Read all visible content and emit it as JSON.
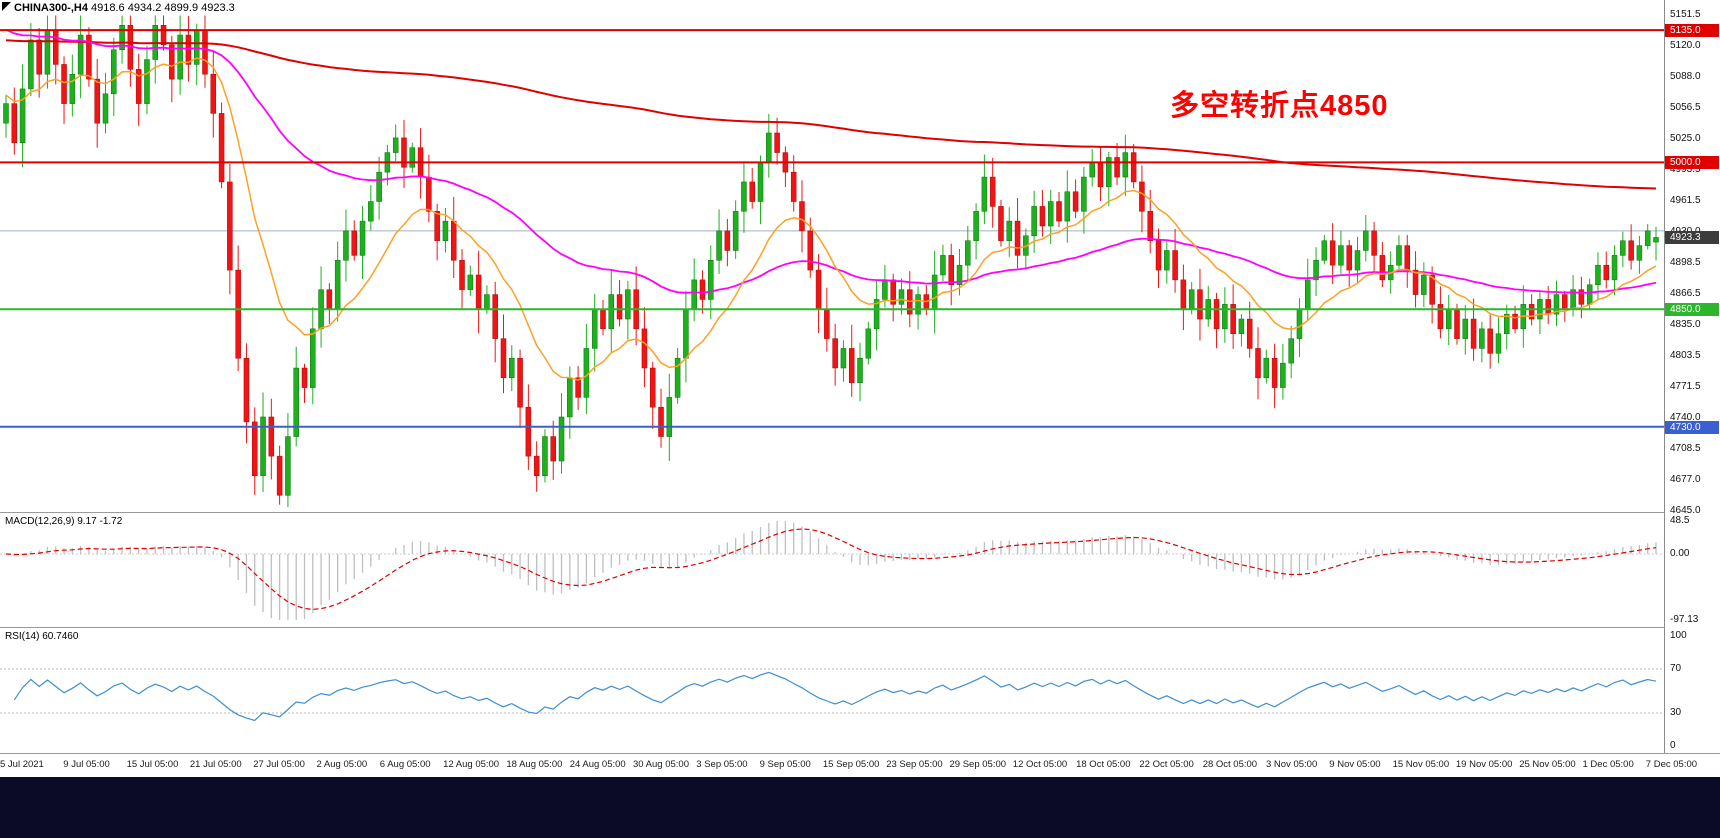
{
  "header": {
    "symbol": "CHINA300-,H4",
    "ohlc": "4918.6 4934.2 4899.9 4923.3"
  },
  "annotation": {
    "text": "多空转折点4850",
    "color": "#ff0000"
  },
  "indicators": {
    "macd_line": "MACD(12,26,9) 9.17 -1.72",
    "rsi_line": "RSI(14) 60.7460"
  },
  "chart_data": {
    "type": "candlestick",
    "title": "CHINA300-,H4",
    "quote": {
      "open": 4918.6,
      "high": 4934.2,
      "low": 4899.9,
      "close": 4923.3
    },
    "first_open": 5040,
    "closes": [
      5060,
      5020,
      5075,
      5125,
      5090,
      5135,
      5100,
      5060,
      5090,
      5130,
      5085,
      5040,
      5070,
      5115,
      5140,
      5095,
      5060,
      5105,
      5140,
      5120,
      5085,
      5130,
      5100,
      5135,
      5090,
      5050,
      4980,
      4890,
      4800,
      4735,
      4680,
      4740,
      4700,
      4660,
      4720,
      4790,
      4770,
      4830,
      4870,
      4850,
      4900,
      4930,
      4905,
      4940,
      4960,
      4990,
      5010,
      5025,
      4995,
      5015,
      4985,
      4950,
      4920,
      4940,
      4900,
      4870,
      4885,
      4850,
      4865,
      4820,
      4780,
      4800,
      4750,
      4700,
      4680,
      4720,
      4695,
      4740,
      4780,
      4760,
      4810,
      4850,
      4830,
      4865,
      4840,
      4870,
      4830,
      4790,
      4750,
      4720,
      4760,
      4800,
      4850,
      4880,
      4860,
      4900,
      4930,
      4910,
      4950,
      4980,
      4960,
      5000,
      5030,
      5010,
      4990,
      4960,
      4930,
      4890,
      4850,
      4820,
      4790,
      4810,
      4775,
      4800,
      4830,
      4860,
      4880,
      4855,
      4870,
      4845,
      4865,
      4850,
      4885,
      4905,
      4875,
      4895,
      4920,
      4950,
      4985,
      4955,
      4920,
      4940,
      4905,
      4925,
      4955,
      4935,
      4960,
      4940,
      4970,
      4950,
      4985,
      5000,
      4975,
      5005,
      4985,
      5010,
      4980,
      4950,
      4920,
      4890,
      4910,
      4880,
      4850,
      4870,
      4840,
      4860,
      4830,
      4855,
      4825,
      4840,
      4810,
      4780,
      4800,
      4770,
      4795,
      4820,
      4850,
      4880,
      4900,
      4920,
      4895,
      4915,
      4890,
      4910,
      4930,
      4905,
      4880,
      4895,
      4915,
      4890,
      4865,
      4885,
      4855,
      4830,
      4850,
      4820,
      4840,
      4810,
      4830,
      4805,
      4825,
      4845,
      4830,
      4855,
      4840,
      4860,
      4845,
      4865,
      4850,
      4870,
      4855,
      4875,
      4895,
      4880,
      4905,
      4920,
      4900,
      4915,
      4930,
      4923.3
    ],
    "colors": {
      "up": "#1db11d",
      "up_stroke": "#0c6e0c",
      "down": "#f01414",
      "down_stroke": "#a80808",
      "background": "#ffffff",
      "separator": "#9a9a9a",
      "taskbar": "#0b0b28"
    },
    "levels": [
      {
        "value": 4930.0,
        "color": "#9fb0c0",
        "width": 1,
        "behind": true
      },
      {
        "value": 5135.0,
        "color": "#e00000",
        "width": 2
      },
      {
        "value": 5000.0,
        "color": "#e00000",
        "width": 2
      },
      {
        "value": 4850.0,
        "color": "#2db52d",
        "width": 2
      },
      {
        "value": 4730.0,
        "color": "#3a5fd0",
        "width": 2
      }
    ],
    "moving_averages": [
      {
        "name": "ma-slow",
        "color": "#e00000",
        "period": 380,
        "seed": 5125,
        "width": 2
      },
      {
        "name": "ma-mid",
        "color": "#ff00ff",
        "period": 60,
        "seed": 5138,
        "width": 1.8
      },
      {
        "name": "ma-fast",
        "color": "#ffa024",
        "period": 14,
        "seed": 5070,
        "width": 1.5
      }
    ],
    "y_axis": {
      "max": 5151.5,
      "min": 4645.0,
      "ticks": [
        5151.5,
        5120.0,
        5088.0,
        5056.5,
        5025.0,
        4993.5,
        4961.5,
        4930.0,
        4898.5,
        4866.5,
        4835.0,
        4803.5,
        4771.5,
        4740.0,
        4708.5,
        4677.0,
        4645.0
      ],
      "badges": [
        {
          "value": 5135.0,
          "text": "5135.0",
          "bg": "#e00000"
        },
        {
          "value": 5000.0,
          "text": "5000.0",
          "bg": "#e00000"
        },
        {
          "value": 4923.3,
          "text": "4923.3",
          "bg": "#3c3c3c"
        },
        {
          "value": 4850.0,
          "text": "4850.0",
          "bg": "#2db52d"
        },
        {
          "value": 4730.0,
          "text": "4730.0",
          "bg": "#3a5fd0"
        }
      ]
    },
    "x_axis": {
      "labels": [
        "5 Jul 2021",
        "9 Jul 05:00",
        "15 Jul 05:00",
        "21 Jul 05:00",
        "27 Jul 05:00",
        "2 Aug 05:00",
        "6 Aug 05:00",
        "12 Aug 05:00",
        "18 Aug 05:00",
        "24 Aug 05:00",
        "30 Aug 05:00",
        "3 Sep 05:00",
        "9 Sep 05:00",
        "15 Sep 05:00",
        "23 Sep 05:00",
        "29 Sep 05:00",
        "12 Oct 05:00",
        "18 Oct 05:00",
        "22 Oct 05:00",
        "28 Oct 05:00",
        "3 Nov 05:00",
        "9 Nov 05:00",
        "15 Nov 05:00",
        "19 Nov 05:00",
        "25 Nov 05:00",
        "1 Dec 05:00",
        "7 Dec 05:00"
      ]
    },
    "macd": {
      "label": "MACD(12,26,9)",
      "main_value": "9.17",
      "signal_value": "-1.72",
      "fast": 12,
      "slow": 26,
      "signal": 9,
      "histogram_color": "#bfbfbf",
      "signal_color": "#e00000",
      "axis": {
        "max": 48.5,
        "min": -97.13,
        "ticks": [
          {
            "v": 48.5,
            "t": "48.5"
          },
          {
            "v": 0,
            "t": "0.00"
          },
          {
            "v": -97.13,
            "t": "-97.13"
          }
        ]
      }
    },
    "rsi": {
      "label": "RSI(14)",
      "value": "60.7460",
      "period": 14,
      "color": "#3b8fd4",
      "axis": {
        "max": 100,
        "min": 0,
        "ticks": [
          100,
          70,
          30,
          0
        ],
        "levels": [
          70,
          30
        ]
      }
    }
  }
}
